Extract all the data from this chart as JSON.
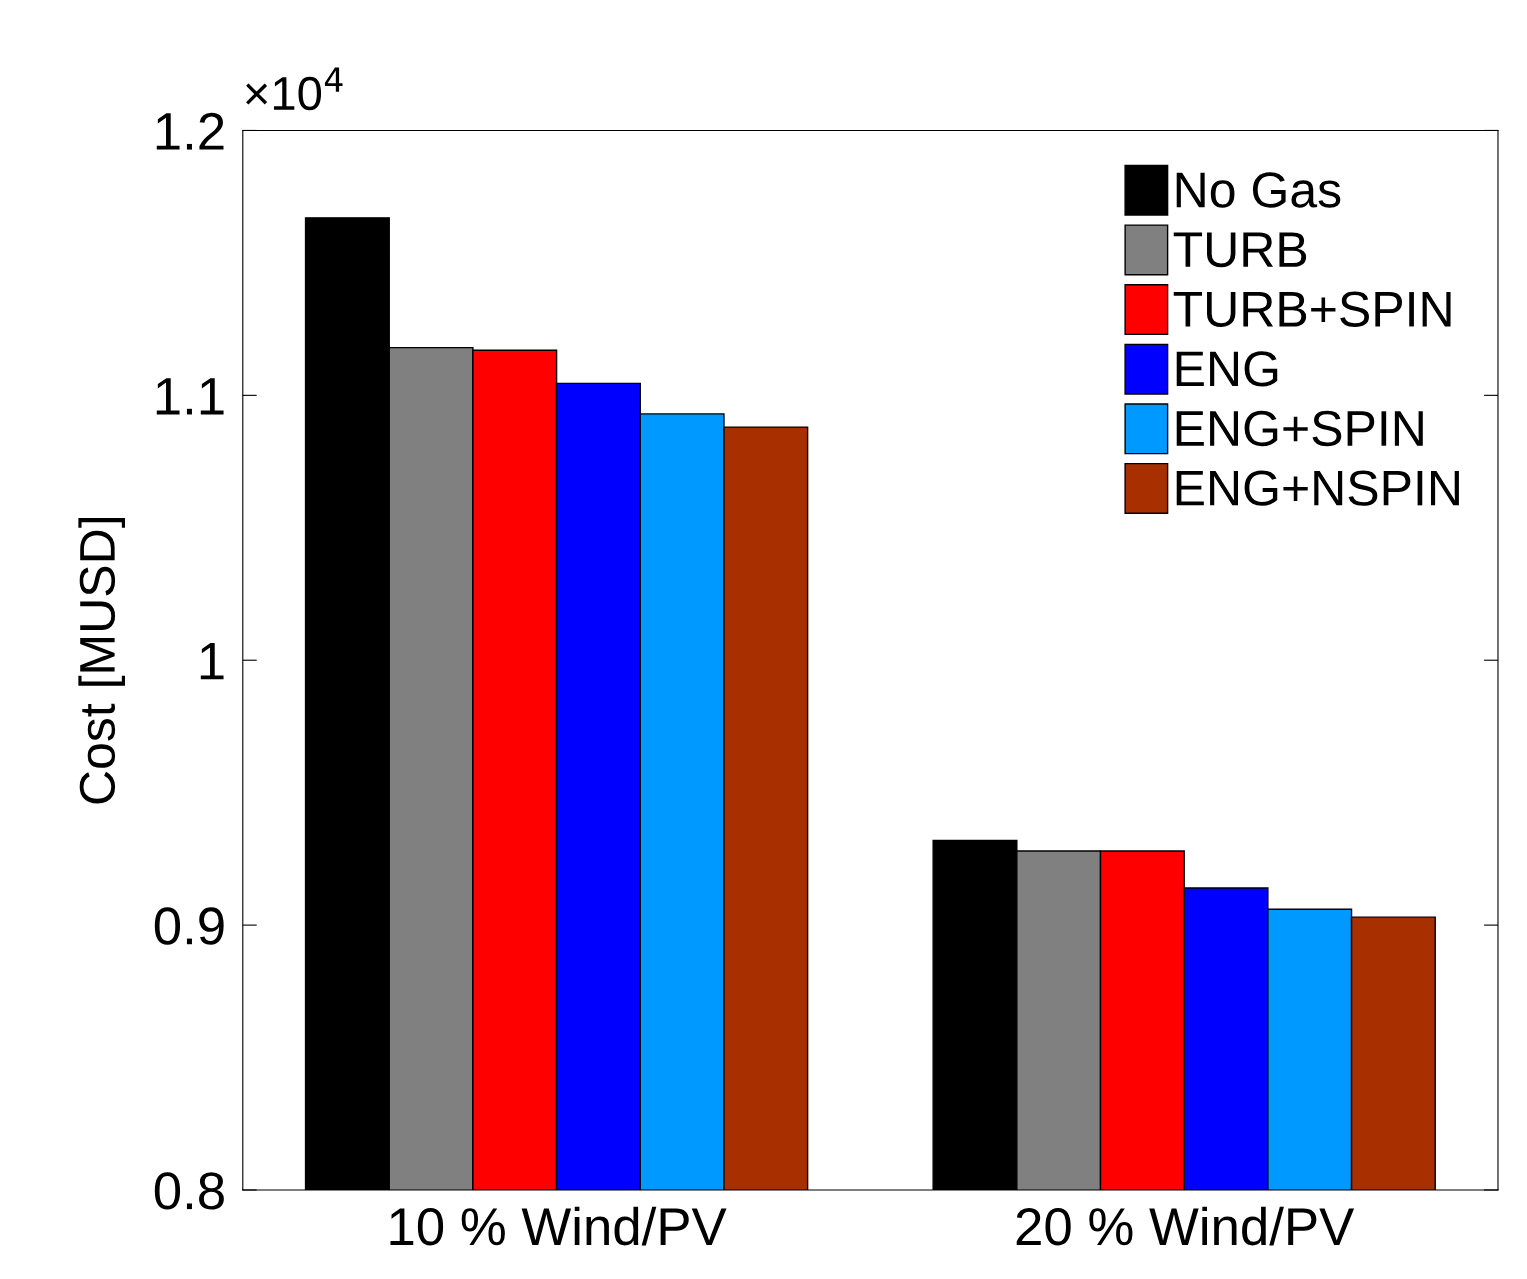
{
  "chart_data": {
    "type": "bar",
    "ylabel": "Cost [MUSD]",
    "categories": [
      "10 % Wind/PV",
      "20 % Wind/PV"
    ],
    "series": [
      {
        "name": "No Gas",
        "color": "#000000",
        "values": [
          1.167,
          0.932
        ]
      },
      {
        "name": "TURB",
        "color": "#808080",
        "values": [
          1.118,
          0.928
        ]
      },
      {
        "name": "TURB+SPIN",
        "color": "#ff0000",
        "values": [
          1.117,
          0.928
        ]
      },
      {
        "name": "ENG",
        "color": "#0000ff",
        "values": [
          1.1045,
          0.914
        ]
      },
      {
        "name": "ENG+SPIN",
        "color": "#0099ff",
        "values": [
          1.093,
          0.906
        ]
      },
      {
        "name": "ENG+NSPIN",
        "color": "#a83000",
        "values": [
          1.088,
          0.903
        ]
      }
    ],
    "ylim": [
      0.8,
      1.2
    ],
    "yticks": [
      0.8,
      0.9,
      1,
      1.1,
      1.2
    ],
    "annotations": [
      "×10$^{4}$"
    ],
    "legend": "top right",
    "grid": false
  }
}
